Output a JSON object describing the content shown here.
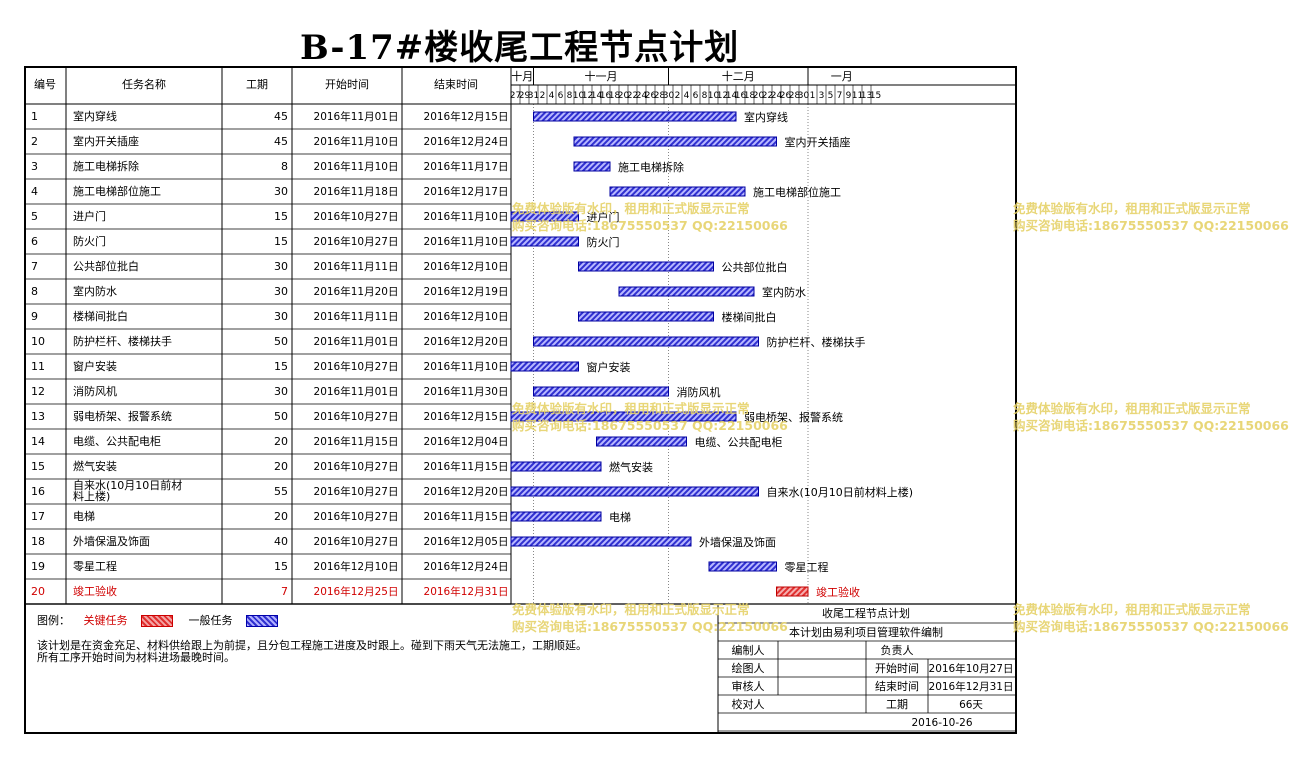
{
  "title": "B-17#楼收尾工程节点计划",
  "headers": {
    "no": "编号",
    "name": "任务名称",
    "dur": "工期",
    "start": "开始时间",
    "end": "结束时间"
  },
  "timeline": {
    "months": [
      "十月",
      "十一月",
      "十二月",
      "一月"
    ],
    "days": [
      "27",
      "29",
      "31",
      "2",
      "4",
      "6",
      "8",
      "10",
      "12",
      "14",
      "16",
      "18",
      "20",
      "22",
      "24",
      "26",
      "28",
      "30",
      "2",
      "4",
      "6",
      "8",
      "10",
      "12",
      "14",
      "16",
      "18",
      "20",
      "22",
      "24",
      "26",
      "28",
      "30",
      "1",
      "3",
      "5",
      "7",
      "9",
      "11",
      "13",
      "15"
    ]
  },
  "watermark": {
    "line1": "免费体验版有水印，租用和正式版显示正常",
    "line2": "购买咨询电话:18675550537 QQ:22150066"
  },
  "legend": {
    "label": "图例：",
    "critical": "关键任务",
    "normal": "一般任务"
  },
  "notes": [
    "该计划是在资金充足、材料供给跟上为前提，且分包工程施工进度及时跟上。碰到下雨天气无法施工，工期顺延。",
    "所有工序开始时间为材料进场最晚时间。"
  ],
  "info": {
    "plan_name": "收尾工程节点计划",
    "software": "本计划由易利项目管理软件编制",
    "editor": "编制人",
    "owner": "负责人",
    "drafter": "绘图人",
    "start_label": "开始时间",
    "start_value": "2016年10月27日",
    "reviewer": "审核人",
    "end_label": "结束时间",
    "end_value": "2016年12月31日",
    "checker": "校对人",
    "dur_label": "工期",
    "dur_value": "66天",
    "date": "2016-10-26"
  },
  "colors": {
    "normal_bar": "#3030d0",
    "critical_bar": "#e03030",
    "critical_text": "#d00000",
    "watermark": "#e6d26a"
  },
  "chart_data": {
    "type": "gantt",
    "title": "B-17#楼收尾工程节点计划",
    "x_range": [
      "2016-10-27",
      "2017-01-15"
    ],
    "tasks": [
      {
        "no": "1",
        "name": "室内穿线",
        "duration": "45",
        "start": "2016年11月01日",
        "end": "2016年12月15日",
        "start_iso": "2016-11-01",
        "end_iso": "2016-12-15",
        "critical": false
      },
      {
        "no": "2",
        "name": "室内开关插座",
        "duration": "45",
        "start": "2016年11月10日",
        "end": "2016年12月24日",
        "start_iso": "2016-11-10",
        "end_iso": "2016-12-24",
        "critical": false
      },
      {
        "no": "3",
        "name": "施工电梯拆除",
        "duration": "8",
        "start": "2016年11月10日",
        "end": "2016年11月17日",
        "start_iso": "2016-11-10",
        "end_iso": "2016-11-17",
        "critical": false
      },
      {
        "no": "4",
        "name": "施工电梯部位施工",
        "duration": "30",
        "start": "2016年11月18日",
        "end": "2016年12月17日",
        "start_iso": "2016-11-18",
        "end_iso": "2016-12-17",
        "critical": false
      },
      {
        "no": "5",
        "name": "进户门",
        "duration": "15",
        "start": "2016年10月27日",
        "end": "2016年11月10日",
        "start_iso": "2016-10-27",
        "end_iso": "2016-11-10",
        "critical": false
      },
      {
        "no": "6",
        "name": "防火门",
        "duration": "15",
        "start": "2016年10月27日",
        "end": "2016年11月10日",
        "start_iso": "2016-10-27",
        "end_iso": "2016-11-10",
        "critical": false
      },
      {
        "no": "7",
        "name": "公共部位批白",
        "duration": "30",
        "start": "2016年11月11日",
        "end": "2016年12月10日",
        "start_iso": "2016-11-11",
        "end_iso": "2016-12-10",
        "critical": false
      },
      {
        "no": "8",
        "name": "室内防水",
        "duration": "30",
        "start": "2016年11月20日",
        "end": "2016年12月19日",
        "start_iso": "2016-11-20",
        "end_iso": "2016-12-19",
        "critical": false
      },
      {
        "no": "9",
        "name": "楼梯间批白",
        "duration": "30",
        "start": "2016年11月11日",
        "end": "2016年12月10日",
        "start_iso": "2016-11-11",
        "end_iso": "2016-12-10",
        "critical": false
      },
      {
        "no": "10",
        "name": "防护栏杆、楼梯扶手",
        "duration": "50",
        "start": "2016年11月01日",
        "end": "2016年12月20日",
        "start_iso": "2016-11-01",
        "end_iso": "2016-12-20",
        "critical": false
      },
      {
        "no": "11",
        "name": "窗户安装",
        "duration": "15",
        "start": "2016年10月27日",
        "end": "2016年11月10日",
        "start_iso": "2016-10-27",
        "end_iso": "2016-11-10",
        "critical": false
      },
      {
        "no": "12",
        "name": "消防风机",
        "duration": "30",
        "start": "2016年11月01日",
        "end": "2016年11月30日",
        "start_iso": "2016-11-01",
        "end_iso": "2016-11-30",
        "critical": false
      },
      {
        "no": "13",
        "name": "弱电桥架、报警系统",
        "duration": "50",
        "start": "2016年10月27日",
        "end": "2016年12月15日",
        "start_iso": "2016-10-27",
        "end_iso": "2016-12-15",
        "critical": false
      },
      {
        "no": "14",
        "name": "电缆、公共配电柜",
        "duration": "20",
        "start": "2016年11月15日",
        "end": "2016年12月04日",
        "start_iso": "2016-11-15",
        "end_iso": "2016-12-04",
        "critical": false
      },
      {
        "no": "15",
        "name": "燃气安装",
        "duration": "20",
        "start": "2016年10月27日",
        "end": "2016年11月15日",
        "start_iso": "2016-10-27",
        "end_iso": "2016-11-15",
        "critical": false
      },
      {
        "no": "16",
        "name": "自来水(10月10日前材料上楼)",
        "duration": "55",
        "start": "2016年10月27日",
        "end": "2016年12月20日",
        "start_iso": "2016-10-27",
        "end_iso": "2016-12-20",
        "critical": false
      },
      {
        "no": "17",
        "name": "电梯",
        "duration": "20",
        "start": "2016年10月27日",
        "end": "2016年11月15日",
        "start_iso": "2016-10-27",
        "end_iso": "2016-11-15",
        "critical": false
      },
      {
        "no": "18",
        "name": "外墙保温及饰面",
        "duration": "40",
        "start": "2016年10月27日",
        "end": "2016年12月05日",
        "start_iso": "2016-10-27",
        "end_iso": "2016-12-05",
        "critical": false
      },
      {
        "no": "19",
        "name": "零星工程",
        "duration": "15",
        "start": "2016年12月10日",
        "end": "2016年12月24日",
        "start_iso": "2016-12-10",
        "end_iso": "2016-12-24",
        "critical": false
      },
      {
        "no": "20",
        "name": "竣工验收",
        "duration": "7",
        "start": "2016年12月25日",
        "end": "2016年12月31日",
        "start_iso": "2016-12-25",
        "end_iso": "2016-12-31",
        "critical": true
      }
    ]
  }
}
